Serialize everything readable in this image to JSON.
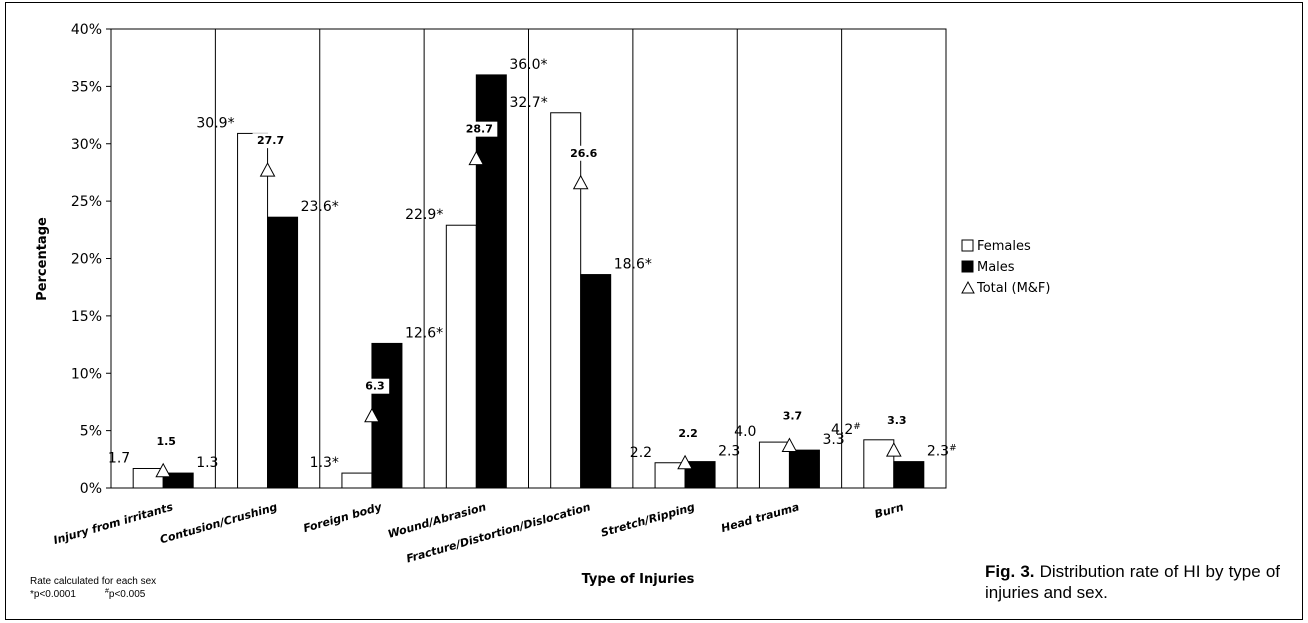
{
  "chart_data": {
    "type": "bar",
    "xlabel": "Type of Injuries",
    "ylabel": "Percentage",
    "ylim": [
      0,
      40
    ],
    "yticks": [
      "0%",
      "5%",
      "10%",
      "15%",
      "20%",
      "25%",
      "30%",
      "35%",
      "40%"
    ],
    "categories": [
      "Injury from irritants",
      "Contusion/Crushing",
      "Foreign body",
      "Wound/Abrasion",
      "Fracture/Distortion/Dislocation",
      "Stretch/Ripping",
      "Head trauma",
      "Burn"
    ],
    "series": [
      {
        "name": "Females",
        "color": "#ffffff",
        "values": [
          1.7,
          30.9,
          1.3,
          22.9,
          32.7,
          2.2,
          4.0,
          4.2
        ],
        "labels": [
          "1.7",
          "30.9*",
          "1.3*",
          "22.9*",
          "32.7*",
          "2.2",
          "4.0",
          "4.2#"
        ]
      },
      {
        "name": "Males",
        "color": "#000000",
        "values": [
          1.3,
          23.6,
          12.6,
          36.0,
          18.6,
          2.3,
          3.3,
          2.3
        ],
        "labels": [
          "1.3",
          "23.6*",
          "12.6*",
          "36.0*",
          "18.6*",
          "2.3",
          "3.3",
          "2.3#"
        ]
      },
      {
        "name": "Total (M&F)",
        "marker": "triangle",
        "values": [
          1.5,
          27.7,
          6.3,
          28.7,
          26.6,
          2.2,
          3.7,
          3.3
        ],
        "labels": [
          "1.5",
          "27.7",
          "6.3",
          "28.7",
          "26.6",
          "2.2",
          "3.7",
          "3.3"
        ]
      }
    ],
    "legend_position": "right",
    "grid": false
  },
  "notes": {
    "line1": "Rate calculated for each sex",
    "line2a": "*p<0.0001",
    "line2b": "#p<0.005"
  },
  "caption": {
    "fig": "Fig. 3.",
    "text": "Distribution rate of HI by type of injuries and sex."
  }
}
